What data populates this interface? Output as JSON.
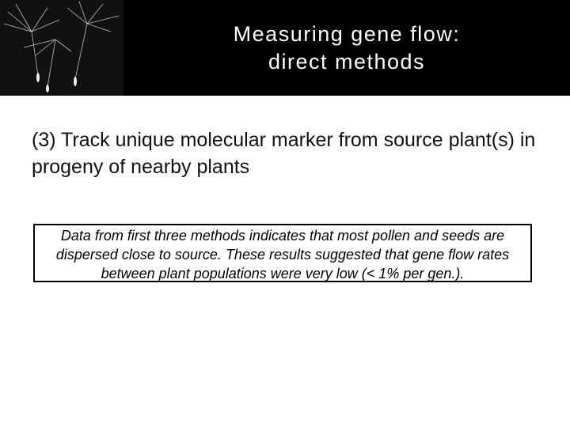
{
  "header": {
    "title_lines": [
      "Measuring gene flow:",
      "direct methods"
    ]
  },
  "body": {
    "point": "(3) Track unique molecular marker from source plant(s) in progeny of nearby plants",
    "box_text": "Data from first three methods indicates that most pollen and seeds are dispersed close to source.  These results suggested that gene flow rates between plant populations were very low (< 1% per gen.)."
  }
}
